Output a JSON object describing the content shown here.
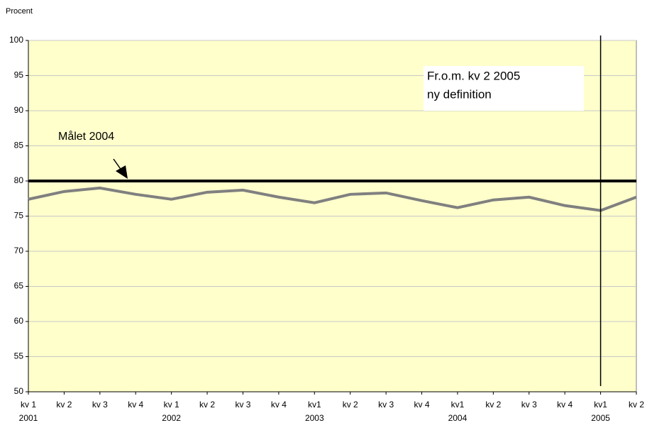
{
  "chart_data": {
    "type": "line",
    "y_axis_label": "Procent",
    "categories": [
      "kv 1",
      "kv 2",
      "kv 3",
      "kv 4",
      "kv 1",
      "kv 2",
      "kv 3",
      "kv 4",
      "kv1",
      "kv 2",
      "kv 3",
      "kv 4",
      "kv1",
      "kv 2",
      "kv 3",
      "kv 4",
      "kv1",
      "kv 2"
    ],
    "years": [
      "2001",
      null,
      null,
      null,
      "2002",
      null,
      null,
      null,
      "2003",
      null,
      null,
      null,
      "2004",
      null,
      null,
      null,
      "2005",
      null
    ],
    "series": [
      {
        "color": "#808080",
        "values": [
          77.4,
          78.5,
          79.0,
          78.1,
          77.4,
          78.4,
          78.7,
          77.7,
          76.9,
          78.1,
          78.3,
          77.2,
          76.2,
          77.3,
          77.7,
          76.5,
          75.8,
          77.7
        ]
      }
    ],
    "target": {
      "value": 80,
      "label": "Målet 2004",
      "color": "#000000"
    },
    "definition_change": {
      "at_index": 16,
      "text": [
        "Fr.o.m. kv 2 2005",
        "ny definition"
      ]
    },
    "ylim": [
      50,
      100
    ],
    "yticks": [
      50,
      55,
      60,
      65,
      70,
      75,
      80,
      85,
      90,
      95,
      100
    ],
    "grid": true,
    "background": "#ffffcc"
  }
}
